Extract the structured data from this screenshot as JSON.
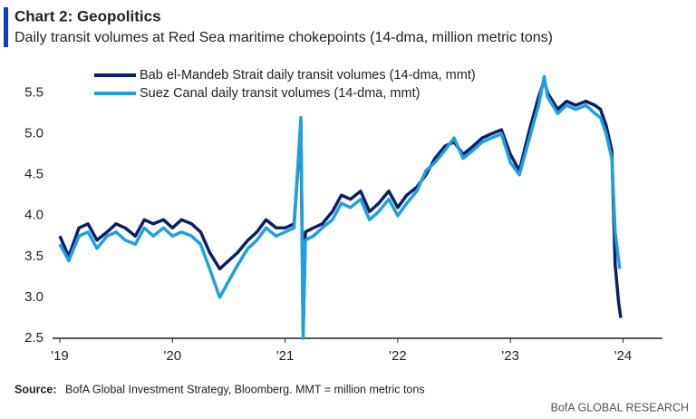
{
  "chart_data": {
    "type": "line",
    "title": "Chart 2: Geopolitics",
    "subtitle": "Daily transit volumes at Red Sea maritime chokepoints (14-dma, million metric tons)",
    "source_label": "Source:",
    "source": "BofA Global Investment Strategy, Bloomberg. MMT = million metric tons",
    "footer": "BofA GLOBAL RESEARCH",
    "xlim": [
      2019,
      2024.35
    ],
    "xticks": [
      {
        "value": 2019,
        "label": "'19"
      },
      {
        "value": 2020,
        "label": "'20"
      },
      {
        "value": 2021,
        "label": "'21"
      },
      {
        "value": 2022,
        "label": "'22"
      },
      {
        "value": 2023,
        "label": "'23"
      },
      {
        "value": 2024,
        "label": "'24"
      }
    ],
    "ylim": [
      2.5,
      5.75
    ],
    "yticks": [
      2.5,
      {
        "value": 3.0,
        "label": "3.0"
      },
      3.5,
      {
        "value": 4.0,
        "label": "4.0"
      },
      4.5,
      {
        "value": 5.0,
        "label": "5.0"
      },
      5.5
    ],
    "series": [
      {
        "name": "Bab el-Mandeb Strait daily transit volumes (14-dma, mmt)",
        "color": "#0a1f66",
        "x": [
          2019.0,
          2019.08,
          2019.17,
          2019.25,
          2019.33,
          2019.42,
          2019.5,
          2019.58,
          2019.67,
          2019.75,
          2019.83,
          2019.92,
          2020.0,
          2020.08,
          2020.17,
          2020.25,
          2020.33,
          2020.42,
          2020.5,
          2020.58,
          2020.67,
          2020.75,
          2020.83,
          2020.92,
          2021.0,
          2021.08,
          2021.14,
          2021.16,
          2021.18,
          2021.25,
          2021.33,
          2021.42,
          2021.5,
          2021.58,
          2021.67,
          2021.75,
          2021.83,
          2021.92,
          2022.0,
          2022.08,
          2022.17,
          2022.25,
          2022.33,
          2022.42,
          2022.5,
          2022.58,
          2022.67,
          2022.75,
          2022.83,
          2022.92,
          2023.0,
          2023.08,
          2023.17,
          2023.25,
          2023.3,
          2023.33,
          2023.42,
          2023.5,
          2023.58,
          2023.67,
          2023.75,
          2023.8,
          2023.85,
          2023.9,
          2023.93,
          2023.96,
          2023.98
        ],
        "values": [
          3.75,
          3.5,
          3.85,
          3.9,
          3.7,
          3.8,
          3.9,
          3.85,
          3.75,
          3.95,
          3.9,
          3.95,
          3.85,
          3.95,
          3.9,
          3.8,
          3.55,
          3.35,
          3.45,
          3.55,
          3.7,
          3.8,
          3.95,
          3.85,
          3.85,
          3.9,
          5.1,
          2.6,
          3.8,
          3.85,
          3.9,
          4.05,
          4.25,
          4.2,
          4.3,
          4.05,
          4.15,
          4.3,
          4.1,
          4.25,
          4.35,
          4.5,
          4.7,
          4.85,
          4.9,
          4.75,
          4.85,
          4.95,
          5.0,
          5.05,
          4.75,
          4.55,
          5.05,
          5.45,
          5.65,
          5.5,
          5.3,
          5.4,
          5.35,
          5.4,
          5.35,
          5.3,
          5.1,
          4.8,
          3.4,
          2.95,
          2.75
        ]
      },
      {
        "name": "Suez Canal daily transit volumes (14-dma, mmt)",
        "color": "#1ea0e0",
        "x": [
          2019.0,
          2019.08,
          2019.17,
          2019.25,
          2019.33,
          2019.42,
          2019.5,
          2019.58,
          2019.67,
          2019.75,
          2019.83,
          2019.92,
          2020.0,
          2020.08,
          2020.17,
          2020.25,
          2020.33,
          2020.42,
          2020.5,
          2020.58,
          2020.67,
          2020.75,
          2020.83,
          2020.92,
          2021.0,
          2021.08,
          2021.14,
          2021.16,
          2021.18,
          2021.25,
          2021.33,
          2021.42,
          2021.5,
          2021.58,
          2021.67,
          2021.75,
          2021.83,
          2021.92,
          2022.0,
          2022.08,
          2022.17,
          2022.25,
          2022.33,
          2022.42,
          2022.5,
          2022.58,
          2022.67,
          2022.75,
          2022.83,
          2022.92,
          2023.0,
          2023.08,
          2023.17,
          2023.25,
          2023.3,
          2023.33,
          2023.42,
          2023.5,
          2023.58,
          2023.67,
          2023.75,
          2023.8,
          2023.85,
          2023.9,
          2023.93,
          2023.97
        ],
        "values": [
          3.65,
          3.45,
          3.75,
          3.8,
          3.6,
          3.75,
          3.8,
          3.7,
          3.65,
          3.85,
          3.75,
          3.85,
          3.75,
          3.8,
          3.75,
          3.65,
          3.35,
          3.0,
          3.2,
          3.4,
          3.6,
          3.7,
          3.85,
          3.75,
          3.8,
          3.85,
          5.2,
          2.5,
          3.7,
          3.75,
          3.85,
          3.95,
          4.15,
          4.1,
          4.2,
          3.95,
          4.05,
          4.2,
          4.0,
          4.15,
          4.3,
          4.55,
          4.65,
          4.8,
          4.95,
          4.7,
          4.8,
          4.9,
          4.95,
          5.0,
          4.65,
          4.5,
          4.95,
          5.35,
          5.7,
          5.45,
          5.25,
          5.35,
          5.3,
          5.35,
          5.25,
          5.2,
          5.0,
          4.7,
          3.8,
          3.35
        ]
      }
    ]
  }
}
